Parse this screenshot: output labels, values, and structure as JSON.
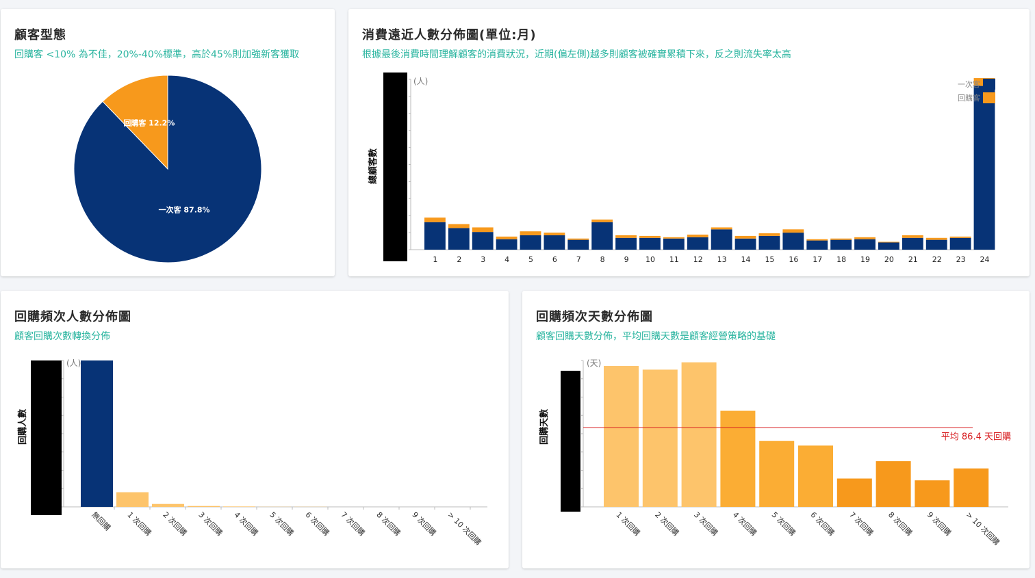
{
  "colors": {
    "navy": "#073376",
    "orange": "#f7991c",
    "teal": "#2bb5a0",
    "red": "#d7191c"
  },
  "cards": {
    "pie": {
      "title": "顧客型態",
      "subtitle": "回購客 <10% 為不佳，20%-40%標準，高於45%則加強新客獲取"
    },
    "recency": {
      "title": "消費遠近人數分佈圖(單位:月)",
      "subtitle": "根據最後消費時間理解顧客的消費狀況，近期(偏左側)越多則顧客被確實累積下來，反之則流失率太高"
    },
    "freq_count": {
      "title": "回購頻次人數分佈圖",
      "subtitle": "顧客回購次數轉換分佈"
    },
    "freq_days": {
      "title": "回購頻次天數分佈圖",
      "subtitle": "顧客回購天數分佈，平均回購天數是顧客經營策略的基礎"
    }
  },
  "chart_data": [
    {
      "type": "pie",
      "slices": [
        {
          "label": "一次客 87.8%",
          "value": 87.8,
          "color": "#073376"
        },
        {
          "label": "回購客 12.2%",
          "value": 12.2,
          "color": "#f7991c"
        }
      ]
    },
    {
      "type": "bar",
      "stacked": true,
      "categories": [
        "1",
        "2",
        "3",
        "4",
        "5",
        "6",
        "7",
        "8",
        "9",
        "10",
        "11",
        "12",
        "13",
        "14",
        "15",
        "16",
        "17",
        "18",
        "19",
        "20",
        "21",
        "22",
        "23",
        "24"
      ],
      "series": [
        {
          "name": "一次客",
          "color": "#073376",
          "values": [
            42,
            33,
            27,
            16,
            22,
            22,
            15,
            42,
            18,
            18,
            17,
            19,
            31,
            17,
            21,
            26,
            14,
            15,
            16,
            11,
            18,
            15,
            18,
            250
          ]
        },
        {
          "name": "回購客",
          "color": "#f7991c",
          "values": [
            7,
            6,
            7,
            4,
            6,
            4,
            2,
            4,
            4,
            3,
            2,
            4,
            3,
            4,
            4,
            5,
            2,
            2,
            3,
            1,
            4,
            3,
            2,
            12
          ]
        }
      ],
      "unit_label": "(人)",
      "ylabel": "總顧客數",
      "ylim": [
        0,
        260
      ]
    },
    {
      "type": "bar",
      "categories": [
        "無回購",
        "1 次回購",
        "2 次回購",
        "3 次回購",
        "4 次回購",
        "5 次回購",
        "6 次回購",
        "7 次回購",
        "8 次回購",
        "9 次回購",
        "> 10 次回購"
      ],
      "values": [
        1000,
        100,
        20,
        6,
        3,
        1,
        1,
        0,
        0,
        0,
        0
      ],
      "unit_label": "(人)",
      "ylabel": "回購人數",
      "ylim": [
        0,
        1000
      ]
    },
    {
      "type": "bar",
      "categories": [
        "1 次回購",
        "2 次回購",
        "3 次回購",
        "4 次回購",
        "5 次回購",
        "6 次回購",
        "7 次回購",
        "8 次回購",
        "9 次回購",
        "> 10 次回購"
      ],
      "values": [
        154,
        150,
        158,
        105,
        72,
        67,
        31,
        50,
        29,
        42
      ],
      "colors": [
        "#fdc46b",
        "#fdc46b",
        "#fdc46b",
        "#fbad34",
        "#fbad34",
        "#fbad34",
        "#f7991c",
        "#f7991c",
        "#f7991c",
        "#f7991c"
      ],
      "unit_label": "(天)",
      "ylabel": "回購天數",
      "ylim": [
        0,
        160
      ],
      "average": {
        "value": 86.4,
        "label": "平均 86.4 天回購"
      }
    }
  ]
}
